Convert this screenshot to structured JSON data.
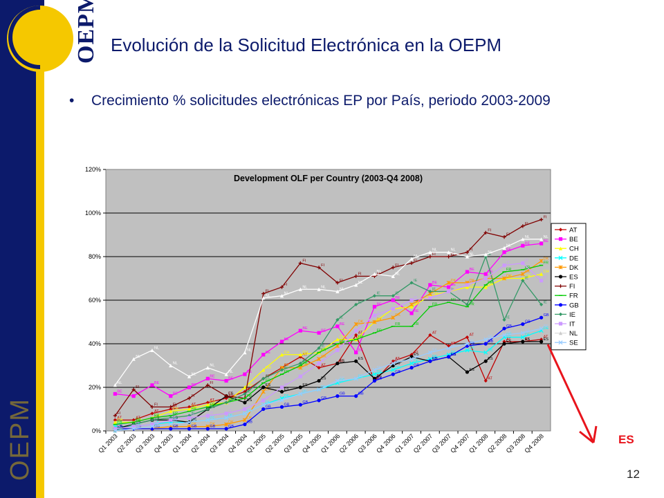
{
  "header": {
    "logo_text": "OEPM",
    "side_text": "OEPM",
    "title": "Evolución de la Solicitud Electrónica en la OEPM",
    "bullet": "Crecimiento % solicitudes electrónicas EP por País, periodo 2003-2009",
    "page_number": "12",
    "callout_label": "ES"
  },
  "colors": {
    "navy": "#0c1a6b",
    "gold": "#f5c800",
    "plot_bg": "#c0c0c0",
    "arrow": "#e8141c"
  },
  "chart_data": {
    "type": "line",
    "title": "Development OLF per Country (2003-Q4 2008)",
    "xlabel": "",
    "ylabel": "",
    "ylim": [
      0,
      120
    ],
    "y_ticks": [
      "0%",
      "20%",
      "40%",
      "60%",
      "80%",
      "100%",
      "120%"
    ],
    "grid": true,
    "legend_position": "right",
    "categories": [
      "Q1 2003",
      "Q2 2003",
      "Q3 2003",
      "Q4 2003",
      "Q1 2004",
      "Q2 2004",
      "Q3 2004",
      "Q4 2004",
      "Q1 2005",
      "Q2 2005",
      "Q3 2005",
      "Q4 2005",
      "Q1 2006",
      "Q2 2006",
      "Q3 2006",
      "Q4 2006",
      "Q1 2007",
      "Q2 2007",
      "Q3 2007",
      "Q4 2007",
      "Q1 2008",
      "Q2 2008",
      "Q3 2008",
      "Q4 2008"
    ],
    "series": [
      {
        "name": "AT",
        "color": "#c00000",
        "marker": "diamond",
        "values": [
          5,
          5,
          8,
          10,
          11,
          13,
          15,
          18,
          24,
          29,
          34,
          29,
          31,
          44,
          23,
          32,
          35,
          44,
          39,
          43,
          23,
          41,
          41,
          42
        ]
      },
      {
        "name": "BE",
        "color": "#ff00ff",
        "marker": "square",
        "values": [
          17,
          16,
          21,
          16,
          20,
          24,
          23,
          26,
          35,
          41,
          46,
          45,
          48,
          36,
          57,
          60,
          54,
          67,
          66,
          73,
          72,
          82,
          85,
          86
        ]
      },
      {
        "name": "CH",
        "color": "#ffff00",
        "marker": "triangle",
        "values": [
          4,
          4,
          6,
          9,
          10,
          12,
          13,
          20,
          28,
          35,
          35,
          36,
          42,
          42,
          50,
          56,
          57,
          62,
          64,
          66,
          66,
          70,
          70,
          72
        ]
      },
      {
        "name": "DE",
        "color": "#00ffff",
        "marker": "x",
        "values": [
          2,
          2,
          3,
          4,
          4,
          5,
          6,
          8,
          12,
          15,
          17,
          19,
          22,
          24,
          26,
          28,
          31,
          33,
          35,
          37,
          36,
          43,
          43,
          46
        ]
      },
      {
        "name": "DK",
        "color": "#ff9900",
        "marker": "asterisk",
        "values": [
          1,
          1,
          1,
          2,
          2,
          2,
          3,
          5,
          18,
          29,
          29,
          33,
          39,
          49,
          50,
          52,
          58,
          63,
          68,
          68,
          70,
          70,
          72,
          78
        ]
      },
      {
        "name": "ES",
        "color": "#000000",
        "marker": "circle",
        "values": [
          1,
          3,
          5,
          5,
          4,
          10,
          16,
          13,
          20,
          18,
          20,
          23,
          31,
          32,
          24,
          30,
          34,
          32,
          34,
          27,
          32,
          40,
          41,
          41
        ]
      },
      {
        "name": "FI",
        "color": "#800000",
        "marker": "plus",
        "values": [
          7,
          19,
          11,
          11,
          15,
          21,
          16,
          15,
          63,
          66,
          77,
          75,
          68,
          71,
          71,
          75,
          77,
          80,
          80,
          82,
          91,
          89,
          94,
          97
        ]
      },
      {
        "name": "FR",
        "color": "#00cc00",
        "marker": "dash",
        "values": [
          3,
          4,
          6,
          7,
          9,
          11,
          13,
          15,
          22,
          26,
          30,
          36,
          40,
          42,
          45,
          48,
          48,
          57,
          59,
          57,
          67,
          73,
          74,
          76
        ]
      },
      {
        "name": "GB",
        "color": "#0000ff",
        "marker": "circle",
        "values": [
          1,
          1,
          1,
          1,
          1,
          1,
          1,
          3,
          10,
          11,
          12,
          14,
          16,
          16,
          23,
          26,
          29,
          32,
          34,
          39,
          40,
          47,
          49,
          52
        ]
      },
      {
        "name": "IE",
        "color": "#339966",
        "marker": "diamond",
        "values": [
          0,
          3,
          5,
          6,
          7,
          10,
          13,
          17,
          24,
          28,
          31,
          38,
          51,
          58,
          62,
          62,
          68,
          64,
          64,
          58,
          80,
          51,
          69,
          58
        ]
      },
      {
        "name": "IT",
        "color": "#cc99ff",
        "marker": "square",
        "values": [
          1,
          2,
          3,
          5,
          6,
          7,
          8,
          10,
          14,
          20,
          25,
          31,
          37,
          46,
          53,
          56,
          60,
          61,
          64,
          67,
          70,
          76,
          77,
          69
        ]
      },
      {
        "name": "NL",
        "color": "#ffffff",
        "marker": "triangle",
        "values": [
          21,
          33,
          37,
          30,
          25,
          29,
          26,
          36,
          61,
          62,
          65,
          65,
          64,
          67,
          72,
          71,
          79,
          82,
          82,
          80,
          81,
          84,
          88,
          88
        ]
      },
      {
        "name": "SE",
        "color": "#99ccff",
        "marker": "x",
        "values": [
          0,
          1,
          2,
          3,
          4,
          5,
          6,
          8,
          12,
          14,
          17,
          19,
          23,
          24,
          28,
          31,
          33,
          36,
          38,
          40,
          42,
          44,
          45,
          47
        ]
      }
    ]
  }
}
